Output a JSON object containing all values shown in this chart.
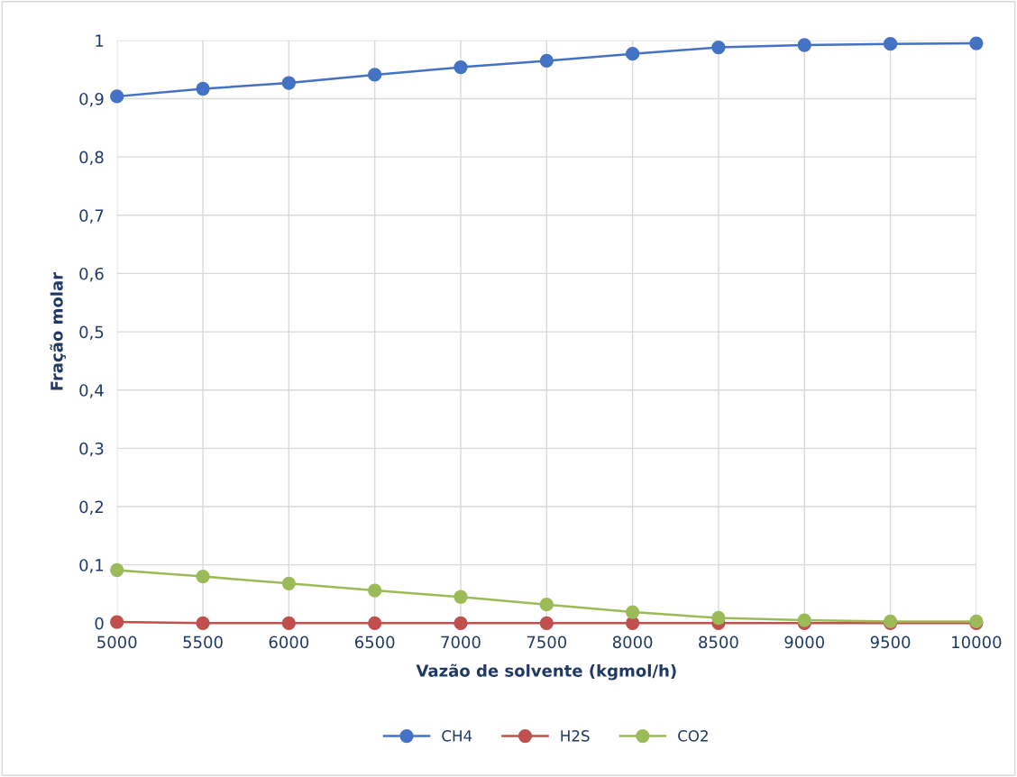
{
  "chart_data": {
    "type": "line",
    "xlabel": "Vazão de solvente (kgmol/h)",
    "ylabel": "Fração molar",
    "x": [
      5000,
      5500,
      6000,
      6500,
      7000,
      7500,
      8000,
      8500,
      9000,
      9500,
      10000
    ],
    "series": [
      {
        "name": "CH4",
        "color": "#4472c4",
        "values": [
          0.904,
          0.917,
          0.927,
          0.941,
          0.954,
          0.965,
          0.977,
          0.988,
          0.992,
          0.994,
          0.995
        ]
      },
      {
        "name": "H2S",
        "color": "#c0504d",
        "values": [
          0.002,
          0,
          0,
          0,
          0,
          0,
          0,
          0,
          0,
          0,
          0
        ]
      },
      {
        "name": "CO2",
        "color": "#9bbb59",
        "values": [
          0.091,
          0.08,
          0.068,
          0.056,
          0.045,
          0.032,
          0.019,
          0.009,
          0.005,
          0.003,
          0.003
        ]
      }
    ],
    "xlim": [
      5000,
      10000
    ],
    "xticks": [
      5000,
      5500,
      6000,
      6500,
      7000,
      7500,
      8000,
      8500,
      9000,
      9500,
      10000
    ],
    "ylim": [
      0,
      1
    ],
    "yticks": [
      0,
      {
        "value": 0.1,
        "label": "0,1"
      },
      {
        "value": 0.2,
        "label": "0,2"
      },
      {
        "value": 0.3,
        "label": "0,3"
      },
      {
        "value": 0.4,
        "label": "0,4"
      },
      {
        "value": 0.5,
        "label": "0,5"
      },
      {
        "value": 0.6,
        "label": "0,6"
      },
      {
        "value": 0.7,
        "label": "0,7"
      },
      {
        "value": 0.8,
        "label": "0,8"
      },
      {
        "value": 0.9,
        "label": "0,9"
      },
      1
    ],
    "grid": true,
    "legend": "bottom",
    "marker": "circle",
    "line_style": "solid"
  }
}
